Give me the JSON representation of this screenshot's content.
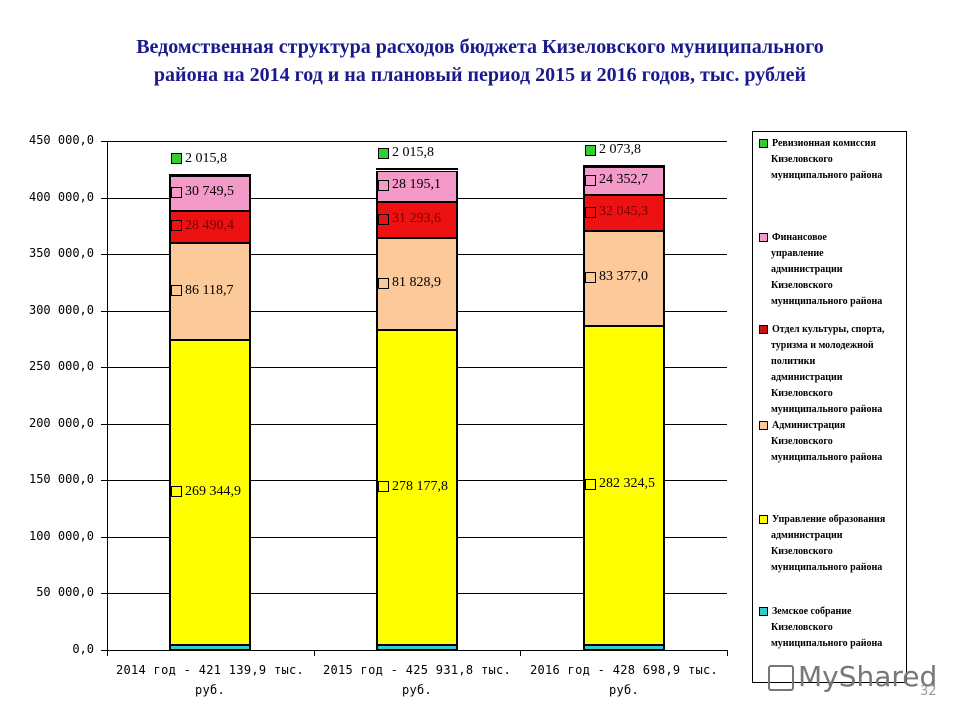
{
  "title": {
    "line1": "Ведомственная структура расходов бюджета Кизеловского муниципального",
    "line2": "района на 2014 год и на плановый период 2015 и 2016 годов, тыс. рублей"
  },
  "chart_data": {
    "type": "bar",
    "stacked": true,
    "title": "Ведомственная структура расходов бюджета Кизеловского муниципального района на 2014 год и на плановый период 2015 и 2016 годов, тыс. рублей",
    "xlabel": "",
    "ylabel": "",
    "ylim": [
      0,
      450000
    ],
    "yticks": [
      "0,0",
      "50 000,0",
      "100 000,0",
      "150 000,0",
      "200 000,0",
      "250 000,0",
      "300 000,0",
      "350 000,0",
      "400 000,0",
      "450 000,0"
    ],
    "grid": true,
    "legend_position": "right",
    "categories": [
      "2014 год - 421 139,9 тыс. руб.",
      "2015 год - 425 931,8 тыс. руб.",
      "2016 год - 428 698,9 тыс. руб."
    ],
    "series": [
      {
        "name": "Земское собрание Кизеловского муниципального района",
        "color": "#33cccc",
        "values": [
          4420.6,
          4420.6,
          4525.6
        ],
        "labels": [
          "4 420,6",
          "4 420,6",
          "4 525,6"
        ]
      },
      {
        "name": "Управление образования администрации Кизеловского муниципального района",
        "color": "#ffff00",
        "values": [
          269344.9,
          278177.8,
          282324.5
        ],
        "labels": [
          "269 344,9",
          "278 177,8",
          "282 324,5"
        ]
      },
      {
        "name": "Администрация Кизеловского муниципального района",
        "color": "#fcc99b",
        "values": [
          86118.7,
          81828.9,
          83377.0
        ],
        "labels": [
          "86 118,7",
          "81 828,9",
          "83 377,0"
        ]
      },
      {
        "name": "Отдел культуры, спорта, туризма и молодежной политики администрации Кизеловского муниципального района",
        "color": "#ee1111",
        "values": [
          28490.4,
          31293.6,
          32045.3
        ],
        "labels": [
          "28 490,4",
          "31 293,6",
          "32 045,3"
        ]
      },
      {
        "name": "Финансовое управление администрации Кизеловского муниципального района",
        "color": "#f39ac9",
        "values": [
          30749.5,
          28195.1,
          24352.7
        ],
        "labels": [
          "30 749,5",
          "28 195,1",
          "24 352,7"
        ]
      },
      {
        "name": "Ревизионная комиссия Кизеловского муниципального района",
        "color": "#33cc33",
        "values": [
          2015.8,
          2015.8,
          2073.8
        ],
        "labels": [
          "2 015,8",
          "2 015,8",
          "2 073,8"
        ]
      }
    ],
    "totals": [
      421139.9,
      425931.8,
      428698.9
    ]
  },
  "axis": {
    "yticks": [
      "450 000,0",
      "400 000,0",
      "350 000,0",
      "300 000,0",
      "250 000,0",
      "200 000,0",
      "150 000,0",
      "100 000,0",
      "50 000,0",
      "0,0"
    ],
    "xlabels": [
      {
        "line1": "2014 год - 421 139,9 тыс.",
        "line2": "руб."
      },
      {
        "line1": "2015 год - 425 931,8 тыс.",
        "line2": "руб."
      },
      {
        "line1": "2016 год - 428 698,9 тыс.",
        "line2": "руб."
      }
    ]
  },
  "legend": [
    {
      "lines": [
        "Ревизионная комиссия",
        "Кизеловского",
        "муниципального района"
      ],
      "color": "#33cc33"
    },
    {
      "lines": [
        "Финансовое",
        "управление",
        "администрации",
        "Кизеловского",
        "муниципального района"
      ],
      "color": "#f39ac9"
    },
    {
      "lines": [
        "Отдел культуры, спорта,",
        "туризма и молодежной",
        "политики",
        "администрации",
        "Кизеловского",
        "муниципального района"
      ],
      "color": "#cc1111"
    },
    {
      "lines": [
        "Администрация",
        "Кизеловского",
        "муниципального района"
      ],
      "color": "#fcc99b"
    },
    {
      "lines": [
        "Управление образования",
        "администрации",
        "Кизеловского",
        "муниципального района"
      ],
      "color": "#ffff00"
    },
    {
      "lines": [
        "Земское собрание",
        "Кизеловского",
        "муниципального района"
      ],
      "color": "#33cccc"
    }
  ],
  "watermark": "MyShared",
  "page_number": "32"
}
